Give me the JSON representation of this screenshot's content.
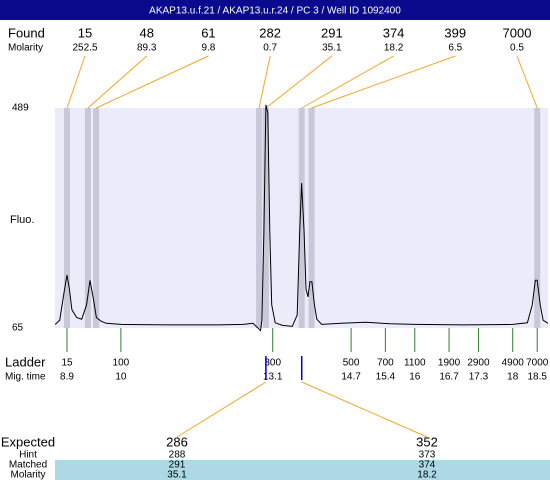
{
  "chart_data": {
    "type": "line",
    "title": "AKAP13.u.f.21 / AKAP13.u.r.24 / PC 3 / Well ID 1092400",
    "y_label": "Fluo.",
    "ylim": [
      65,
      489
    ],
    "yticks": [
      65,
      489
    ],
    "xlim": [
      8.655,
      18.72
    ],
    "color": "#000000",
    "x": [
      8.66,
      8.75,
      8.85,
      8.9,
      8.95,
      9.0,
      9.1,
      9.2,
      9.3,
      9.37,
      9.44,
      9.5,
      9.6,
      9.7,
      10,
      11,
      12,
      12.5,
      12.7,
      12.85,
      12.88,
      12.92,
      12.96,
      13.0,
      13.04,
      13.08,
      13.15,
      13.3,
      13.5,
      13.6,
      13.65,
      13.69,
      13.74,
      13.78,
      13.82,
      13.86,
      13.9,
      13.95,
      14.0,
      14.1,
      14.5,
      15.0,
      15.5,
      16,
      17,
      18.0,
      18.3,
      18.4,
      18.46,
      18.5,
      18.56,
      18.62,
      18.72
    ],
    "values": [
      72,
      80,
      140,
      167,
      140,
      100,
      85,
      82,
      110,
      157,
      120,
      85,
      78,
      74,
      72,
      71,
      71,
      72,
      74,
      60,
      80,
      250,
      495,
      480,
      250,
      110,
      75,
      70,
      68,
      90,
      250,
      344,
      250,
      140,
      125,
      154,
      154,
      110,
      82,
      72,
      74,
      76,
      73,
      72,
      71,
      72,
      75,
      110,
      157,
      157,
      110,
      80,
      74
    ],
    "found": {
      "label": "Found",
      "sizes": [
        15,
        48,
        61,
        282,
        291,
        374,
        399,
        7000
      ],
      "color": "#f5a623",
      "molarity_label": "Molarity",
      "molarity": [
        252.5,
        89.3,
        9.8,
        0.7,
        35.1,
        18.2,
        6.5,
        0.5
      ],
      "band_color": "#c8c8d8"
    },
    "ladder": {
      "label": "Ladder",
      "sizes": [
        15,
        100,
        300,
        500,
        700,
        1100,
        1900,
        2900,
        4900,
        7000
      ],
      "color": "#2e7d32",
      "mig_label": "Mig. time",
      "mig_times": [
        8.9,
        10,
        13.1,
        14.7,
        15.4,
        16,
        16.7,
        17.3,
        18,
        18.5
      ]
    },
    "expected": {
      "label": "Expected",
      "values": [
        286,
        352
      ],
      "hint_label": "Hint",
      "hint": [
        288,
        373
      ],
      "matched_label": "Matched",
      "matched": [
        291,
        374
      ],
      "molarity_label": "Molarity",
      "molarity": [
        35.1,
        18.2
      ],
      "marker_color": "#0000cc",
      "highlight": "#add8e6"
    }
  }
}
